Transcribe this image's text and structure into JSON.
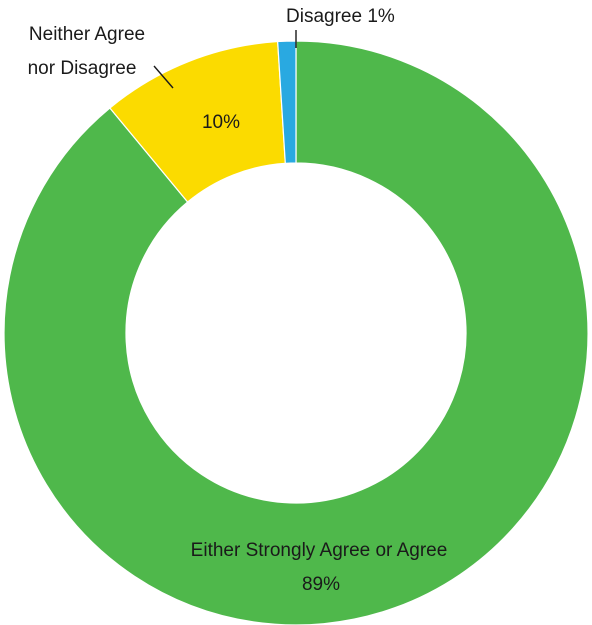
{
  "chart_data": {
    "type": "pie",
    "variant": "donut",
    "title": "",
    "slices": [
      {
        "label": "Either Strongly Agree or Agree",
        "value": 89,
        "value_label": "89%",
        "color": "#4fb84b"
      },
      {
        "label": "Neither Agree nor Disagree",
        "value": 10,
        "value_label": "10%",
        "color": "#fbdb00"
      },
      {
        "label": "Disagree",
        "value": 1,
        "value_label": "1%",
        "color": "#29a9e1"
      }
    ],
    "start": "12 o'clock",
    "direction": "clockwise",
    "legend": "none"
  },
  "labels": {
    "agree_name": "Either Strongly Agree or Agree",
    "agree_value": "89%",
    "neither_line1": "Neither Agree",
    "neither_line2": "nor Disagree",
    "neither_value": "10%",
    "disagree_label": "Disagree 1%"
  }
}
